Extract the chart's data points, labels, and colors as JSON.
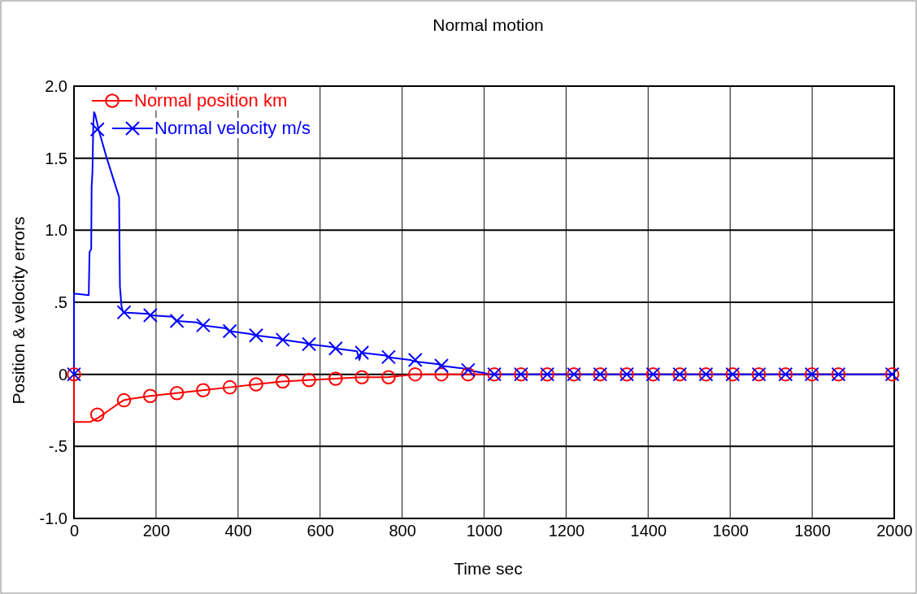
{
  "chart_data": {
    "type": "line",
    "title": "Normal motion",
    "xlabel": "Time sec",
    "ylabel": "Position & velocity errors",
    "xlim": [
      0,
      2000
    ],
    "xticks": [
      0,
      200,
      400,
      600,
      800,
      1000,
      1200,
      1400,
      1600,
      1800,
      2000
    ],
    "ylim": [
      -1,
      2
    ],
    "yticks": [
      {
        "value": -1,
        "label": "-1.0"
      },
      {
        "value": -0.5,
        "label": "-.5"
      },
      0,
      {
        "value": 0.5,
        "label": ".5"
      },
      {
        "value": 1,
        "label": "1.0"
      },
      1.5,
      {
        "value": 2,
        "label": "2.0"
      }
    ],
    "grid": true,
    "legend": "top left",
    "line_style": "solid",
    "series": [
      {
        "name": "Normal position km",
        "color": "#ff0000",
        "type": "line",
        "marker": "none",
        "x": [
          0,
          0,
          40,
          60,
          70,
          90,
          110,
          121,
          140,
          186,
          250,
          314,
          379,
          443,
          507,
          571,
          636,
          700,
          764,
          829,
          2000
        ],
        "values": [
          0,
          -0.33,
          -0.33,
          -0.3,
          -0.28,
          -0.24,
          -0.2,
          -0.18,
          -0.17,
          -0.15,
          -0.13,
          -0.11,
          -0.09,
          -0.07,
          -0.05,
          -0.04,
          -0.03,
          -0.02,
          -0.02,
          0,
          0
        ]
      },
      {
        "name": "Normal velocity m/s",
        "color": "#0000ff",
        "type": "line",
        "marker": "none",
        "x": [
          0,
          0,
          36,
          38,
          42,
          43,
          45,
          47,
          49,
          52,
          60,
          80,
          100,
          110,
          112,
          116,
          120,
          180,
          186,
          240,
          250,
          300,
          314,
          370,
          379,
          430,
          443,
          500,
          507,
          560,
          571,
          630,
          636,
          690,
          696,
          700,
          760,
          764,
          820,
          829,
          890,
          893,
          950,
          957,
          1000,
          1010,
          2000
        ],
        "values": [
          0,
          0.56,
          0.55,
          0.85,
          0.87,
          1.3,
          1.4,
          1.72,
          1.82,
          1.8,
          1.7,
          1.5,
          1.32,
          1.23,
          0.61,
          0.47,
          0.43,
          0.42,
          0.41,
          0.4,
          0.37,
          0.36,
          0.34,
          0.32,
          0.3,
          0.28,
          0.27,
          0.25,
          0.24,
          0.22,
          0.21,
          0.19,
          0.18,
          0.16,
          0.1,
          0.15,
          0.13,
          0.12,
          0.1,
          0.09,
          0.07,
          0.06,
          0.04,
          0.03,
          0.01,
          0,
          0
        ]
      },
      {
        "color": "#ff0000",
        "type": "scatter",
        "marker": "circle",
        "x": [
          0,
          57,
          122,
          186,
          251,
          315,
          380,
          444,
          509,
          573,
          638,
          702,
          767,
          832,
          896,
          961,
          1025,
          1090,
          1154,
          1219,
          1283,
          1348,
          1412,
          1477,
          1541,
          1606,
          1670,
          1735,
          1799,
          1864,
          1995
        ],
        "values": [
          0,
          -0.28,
          -0.18,
          -0.15,
          -0.13,
          -0.11,
          -0.09,
          -0.07,
          -0.05,
          -0.04,
          -0.03,
          -0.02,
          -0.02,
          0,
          0,
          0,
          0,
          0,
          0,
          0,
          0,
          0,
          0,
          0,
          0,
          0,
          0,
          0,
          0,
          0,
          0
        ]
      },
      {
        "color": "#0000ff",
        "type": "scatter",
        "marker": "cross",
        "x": [
          0,
          57,
          122,
          186,
          251,
          315,
          380,
          444,
          509,
          573,
          638,
          702,
          767,
          832,
          896,
          961,
          1025,
          1090,
          1154,
          1219,
          1283,
          1348,
          1412,
          1477,
          1541,
          1606,
          1670,
          1735,
          1799,
          1864,
          1995
        ],
        "values": [
          0,
          1.7,
          0.43,
          0.41,
          0.37,
          0.34,
          0.3,
          0.27,
          0.24,
          0.21,
          0.18,
          0.15,
          0.12,
          0.1,
          0.06,
          0.03,
          0,
          0,
          0,
          0,
          0,
          0,
          0,
          0,
          0,
          0,
          0,
          0,
          0,
          0,
          0
        ]
      }
    ]
  }
}
